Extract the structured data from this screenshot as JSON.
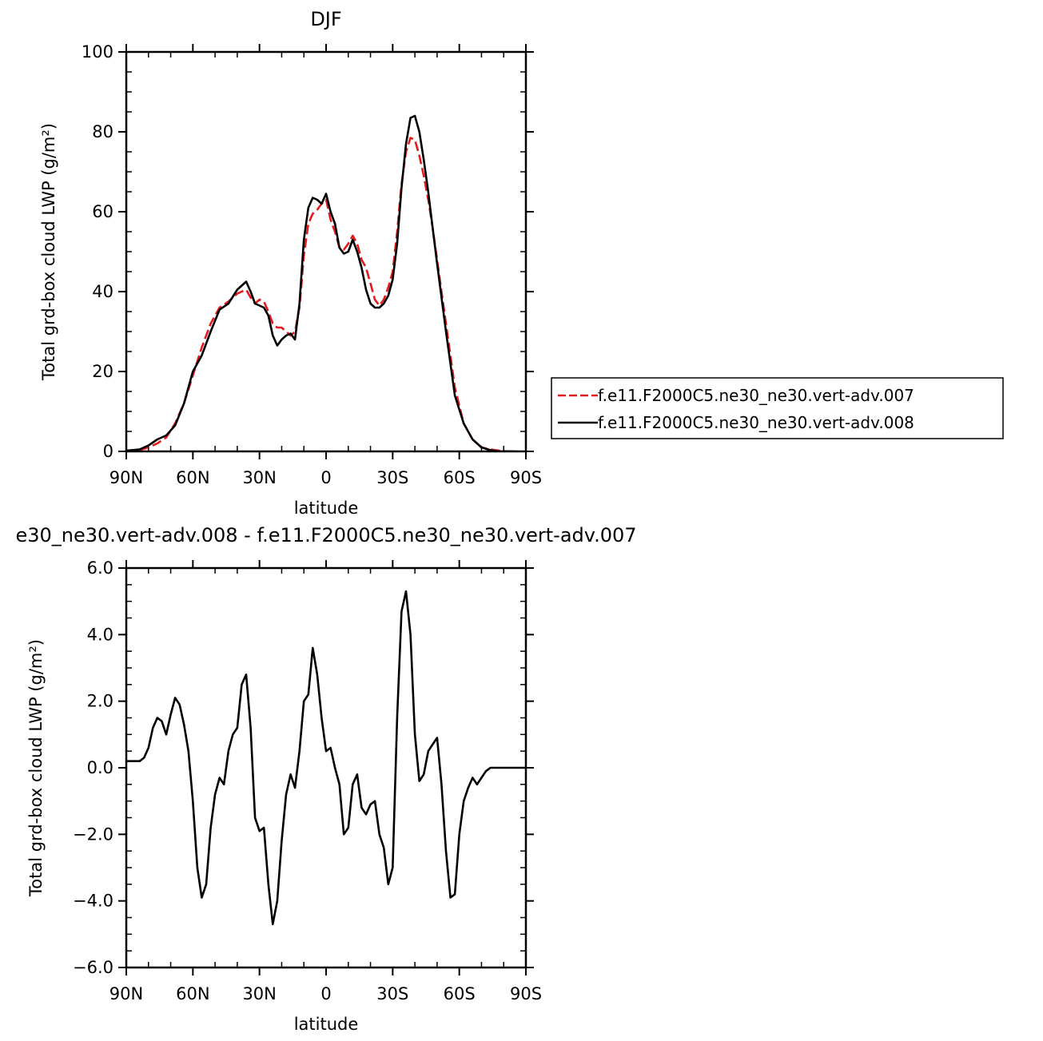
{
  "chart_data": [
    {
      "type": "line",
      "title": "DJF",
      "xlabel": "latitude",
      "ylabel": "Total grd-box cloud LWP (g/m²)",
      "xlim": [
        90,
        -90
      ],
      "ylim": [
        0,
        100
      ],
      "x_ticks": [
        {
          "value": 90,
          "label": "90N"
        },
        {
          "value": 60,
          "label": "60N"
        },
        {
          "value": 30,
          "label": "30N"
        },
        {
          "value": 0,
          "label": "0"
        },
        {
          "value": -30,
          "label": "30S"
        },
        {
          "value": -60,
          "label": "60S"
        },
        {
          "value": -90,
          "label": "90S"
        }
      ],
      "y_ticks": [
        {
          "value": 0,
          "label": "0"
        },
        {
          "value": 20,
          "label": "20"
        },
        {
          "value": 40,
          "label": "40"
        },
        {
          "value": 60,
          "label": "60"
        },
        {
          "value": 80,
          "label": "80"
        },
        {
          "value": 100,
          "label": "100"
        }
      ],
      "legend_position": "right",
      "series": [
        {
          "name": "f.e11.F2000C5.ne30_ne30.vert-adv.007",
          "color": "#e41a1c",
          "dash": "dashed",
          "x": [
            90,
            84,
            80,
            76,
            72,
            68,
            64,
            60,
            56,
            52,
            48,
            44,
            40,
            36,
            34,
            32,
            30,
            28,
            26,
            24,
            22,
            20,
            18,
            16,
            14,
            12,
            10,
            8,
            6,
            4,
            2,
            0,
            -2,
            -4,
            -6,
            -8,
            -10,
            -12,
            -14,
            -16,
            -18,
            -20,
            -22,
            -24,
            -26,
            -28,
            -30,
            -32,
            -34,
            -36,
            -38,
            -40,
            -42,
            -44,
            -46,
            -48,
            -50,
            -54,
            -58,
            -62,
            -66,
            -70,
            -74,
            -78,
            -82,
            -86
          ],
          "y": [
            0,
            0.3,
            1,
            2,
            3.5,
            7,
            12,
            19,
            26,
            32,
            36,
            37.5,
            39.5,
            40.5,
            38.5,
            37,
            38,
            37.5,
            35,
            32,
            31,
            31,
            30,
            29,
            30,
            36,
            49,
            57,
            59.5,
            60.5,
            62,
            63,
            58,
            55,
            51,
            50.5,
            52,
            54,
            52,
            48,
            46,
            42,
            38,
            36.5,
            38,
            41,
            45,
            55,
            67,
            75,
            78.5,
            78,
            74,
            69,
            63,
            56,
            48,
            32,
            16,
            7,
            3,
            1,
            0.5,
            0.2,
            0,
            0
          ]
        },
        {
          "name": "f.e11.F2000C5.ne30_ne30.vert-adv.008",
          "color": "#000000",
          "dash": "solid",
          "x": [
            90,
            84,
            80,
            76,
            72,
            68,
            64,
            60,
            56,
            52,
            48,
            44,
            40,
            36,
            34,
            32,
            30,
            28,
            26,
            24,
            22,
            20,
            18,
            16,
            14,
            12,
            10,
            8,
            6,
            4,
            2,
            0,
            -2,
            -4,
            -6,
            -8,
            -10,
            -12,
            -14,
            -16,
            -18,
            -20,
            -22,
            -24,
            -26,
            -28,
            -30,
            -32,
            -34,
            -36,
            -38,
            -40,
            -42,
            -44,
            -46,
            -48,
            -50,
            -54,
            -58,
            -62,
            -66,
            -70,
            -74,
            -78,
            -82,
            -86
          ],
          "y": [
            0.2,
            0.5,
            1.5,
            3,
            4,
            6.5,
            12,
            20,
            24,
            30,
            35.5,
            37,
            40.5,
            42.5,
            40,
            37,
            36.5,
            36,
            34,
            29,
            26.5,
            28,
            29,
            29.5,
            28,
            37,
            53,
            61,
            63.5,
            63,
            62,
            64.5,
            60,
            57,
            51,
            49.5,
            50,
            53,
            50,
            46,
            40.5,
            37,
            36,
            36,
            37,
            39,
            43,
            52,
            66,
            77,
            83.5,
            84,
            80,
            73,
            65,
            56,
            47,
            30,
            14,
            7,
            3,
            1,
            0.3,
            0,
            0,
            0
          ]
        }
      ]
    },
    {
      "type": "line",
      "title": "e30_ne30.vert-adv.008 - f.e11.F2000C5.ne30_ne30.vert-adv.007",
      "xlabel": "latitude",
      "ylabel": "Total grd-box cloud LWP (g/m²)",
      "xlim": [
        90,
        -90
      ],
      "ylim": [
        -6,
        6
      ],
      "x_ticks": [
        {
          "value": 90,
          "label": "90N"
        },
        {
          "value": 60,
          "label": "60N"
        },
        {
          "value": 30,
          "label": "30N"
        },
        {
          "value": 0,
          "label": "0"
        },
        {
          "value": -30,
          "label": "30S"
        },
        {
          "value": -60,
          "label": "60S"
        },
        {
          "value": -90,
          "label": "90S"
        }
      ],
      "y_ticks": [
        {
          "value": -6,
          "label": "−6.0"
        },
        {
          "value": -4,
          "label": "−4.0"
        },
        {
          "value": -2,
          "label": "−2.0"
        },
        {
          "value": 0,
          "label": "0.0"
        },
        {
          "value": 2,
          "label": "2.0"
        },
        {
          "value": 4,
          "label": "4.0"
        },
        {
          "value": 6,
          "label": "6.0"
        }
      ],
      "series": [
        {
          "color": "#000000",
          "dash": "solid",
          "x": [
            90,
            88,
            84,
            82,
            80,
            78,
            76,
            74,
            72,
            70,
            68,
            66,
            64,
            62,
            60,
            58,
            56,
            54,
            52,
            50,
            48,
            46,
            44,
            42,
            40,
            38,
            36,
            34,
            32,
            30,
            28,
            26,
            24,
            22,
            20,
            18,
            16,
            14,
            12,
            10,
            8,
            6,
            4,
            2,
            0,
            -2,
            -4,
            -6,
            -8,
            -10,
            -12,
            -14,
            -16,
            -18,
            -20,
            -22,
            -24,
            -26,
            -28,
            -30,
            -32,
            -34,
            -36,
            -38,
            -40,
            -42,
            -44,
            -46,
            -48,
            -50,
            -52,
            -54,
            -56,
            -58,
            -60,
            -62,
            -64,
            -66,
            -68,
            -70,
            -72,
            -74,
            -76,
            -78,
            -80,
            -82,
            -84,
            -86,
            -88,
            -90
          ],
          "y": [
            0.2,
            0.2,
            0.2,
            0.3,
            0.6,
            1.2,
            1.5,
            1.4,
            1.0,
            1.6,
            2.1,
            1.9,
            1.3,
            0.5,
            -1.0,
            -3.0,
            -3.9,
            -3.5,
            -1.8,
            -0.8,
            -0.3,
            -0.5,
            0.5,
            1.0,
            1.2,
            2.5,
            2.8,
            1.2,
            -1.5,
            -1.9,
            -1.8,
            -3.5,
            -4.7,
            -4.0,
            -2.2,
            -0.8,
            -0.2,
            -0.6,
            0.5,
            2.0,
            2.2,
            3.6,
            2.8,
            1.5,
            0.5,
            0.6,
            0.0,
            -0.5,
            -2.0,
            -1.8,
            -0.5,
            -0.2,
            -1.2,
            -1.4,
            -1.1,
            -1.0,
            -2.0,
            -2.4,
            -3.5,
            -3.0,
            1.5,
            4.7,
            5.3,
            4.0,
            1.0,
            -0.4,
            -0.2,
            0.5,
            0.7,
            0.9,
            -0.5,
            -2.5,
            -3.9,
            -3.8,
            -2.0,
            -1.0,
            -0.6,
            -0.3,
            -0.5,
            -0.3,
            -0.1,
            0.0,
            0.0,
            0.0,
            0.0,
            0.0,
            0.0,
            0.0,
            0.0,
            0.0
          ]
        }
      ]
    }
  ]
}
